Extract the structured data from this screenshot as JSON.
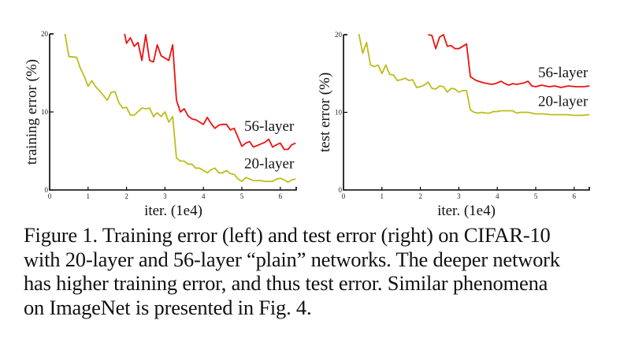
{
  "chart_data": [
    {
      "type": "line",
      "title": "",
      "xlabel": "iter. (1e4)",
      "ylabel": "training error (%)",
      "xlim": [
        0,
        6.4
      ],
      "ylim": [
        0,
        20
      ],
      "x_ticks": [
        "0",
        "1",
        "2",
        "3",
        "4",
        "5",
        "6"
      ],
      "y_ticks": [
        "0",
        "10",
        "20"
      ],
      "grid": false,
      "legend_position": "inline-right",
      "series": [
        {
          "name": "56-layer",
          "color": "#ee1111",
          "x": [
            1.95,
            2.0,
            2.1,
            2.2,
            2.3,
            2.4,
            2.5,
            2.6,
            2.7,
            2.8,
            2.9,
            3.1,
            3.2,
            3.3,
            3.4,
            3.5,
            3.6,
            3.7,
            3.8,
            4.0,
            4.1,
            4.2,
            4.3,
            4.4,
            4.5,
            4.6,
            4.7,
            4.8,
            5.0,
            5.1,
            5.2,
            5.3,
            5.4,
            5.5,
            5.6,
            5.7,
            5.8,
            5.9,
            6.0,
            6.1,
            6.2,
            6.3,
            6.4
          ],
          "values": [
            20.0,
            18.8,
            19.5,
            18.4,
            18.9,
            16.6,
            19.9,
            16.6,
            16.4,
            18.6,
            17.2,
            16.6,
            18.6,
            11.5,
            10.0,
            10.4,
            9.5,
            9.1,
            9.0,
            8.4,
            9.3,
            8.5,
            7.9,
            8.3,
            8.4,
            8.4,
            7.7,
            7.9,
            5.6,
            6.0,
            6.2,
            5.5,
            5.7,
            5.9,
            6.1,
            6.5,
            5.5,
            5.8,
            6.0,
            5.2,
            5.2,
            5.8,
            6.0
          ]
        },
        {
          "name": "20-layer",
          "color": "#bdbd1c",
          "x": [
            0.4,
            0.5,
            0.7,
            0.8,
            0.9,
            1.0,
            1.1,
            1.2,
            1.3,
            1.4,
            1.5,
            1.6,
            1.7,
            1.8,
            1.9,
            2.0,
            2.1,
            2.2,
            2.4,
            2.5,
            2.6,
            2.7,
            2.8,
            2.9,
            3.0,
            3.1,
            3.2,
            3.3,
            3.4,
            3.5,
            3.6,
            3.7,
            3.8,
            3.9,
            4.0,
            4.1,
            4.2,
            4.3,
            4.4,
            4.5,
            4.6,
            4.7,
            4.8,
            4.9,
            5.0,
            5.1,
            5.2,
            5.3,
            5.5,
            5.6,
            5.8,
            5.9,
            6.0,
            6.1,
            6.2,
            6.3,
            6.4
          ],
          "values": [
            20.0,
            17.1,
            17.0,
            15.6,
            14.6,
            13.3,
            14.0,
            13.2,
            12.7,
            12.1,
            11.5,
            12.5,
            12.6,
            11.2,
            10.5,
            10.6,
            9.6,
            9.6,
            10.5,
            10.4,
            10.5,
            9.4,
            9.9,
            9.4,
            10.0,
            8.7,
            9.4,
            4.1,
            3.7,
            3.7,
            3.3,
            3.3,
            2.8,
            2.8,
            2.5,
            2.2,
            2.6,
            2.8,
            2.2,
            2.2,
            2.5,
            2.1,
            2.0,
            1.4,
            1.1,
            1.6,
            1.4,
            1.2,
            1.2,
            1.1,
            1.1,
            1.4,
            1.5,
            1.3,
            1.0,
            1.3,
            1.4
          ]
        }
      ],
      "annotations": [
        {
          "text": "56-layer",
          "x": 5.7,
          "y": 7.6
        },
        {
          "text": "20-layer",
          "x": 5.7,
          "y": 2.8
        }
      ]
    },
    {
      "type": "line",
      "title": "",
      "xlabel": "iter. (1e4)",
      "ylabel": "test error (%)",
      "xlim": [
        0,
        6.4
      ],
      "ylim": [
        0,
        20
      ],
      "x_ticks": [
        "0",
        "1",
        "2",
        "3",
        "4",
        "5",
        "6"
      ],
      "y_ticks": [
        "0",
        "10",
        "20"
      ],
      "grid": false,
      "legend_position": "inline-right",
      "series": [
        {
          "name": "56-layer",
          "color": "#ee1111",
          "x": [
            2.2,
            2.3,
            2.4,
            2.5,
            2.6,
            2.7,
            2.8,
            2.9,
            3.0,
            3.1,
            3.2,
            3.3,
            3.45,
            3.65,
            3.85,
            3.95,
            4.1,
            4.2,
            4.3,
            4.4,
            4.5,
            4.6,
            4.7,
            4.8,
            4.9,
            5.0,
            5.15,
            5.35,
            5.5,
            5.65,
            5.85,
            6.05,
            6.25,
            6.4
          ],
          "values": [
            20.0,
            19.9,
            18.2,
            19.7,
            20.0,
            18.5,
            18.6,
            18.2,
            18.2,
            18.5,
            18.8,
            14.6,
            14.1,
            13.8,
            13.6,
            13.7,
            14.0,
            13.7,
            13.5,
            13.7,
            13.6,
            13.7,
            13.8,
            14.0,
            13.4,
            13.3,
            13.5,
            13.3,
            13.4,
            13.2,
            13.4,
            13.3,
            13.3,
            13.4
          ]
        },
        {
          "name": "20-layer",
          "color": "#bdbd1c",
          "x": [
            0.4,
            0.5,
            0.6,
            0.7,
            0.8,
            0.9,
            1.0,
            1.1,
            1.2,
            1.3,
            1.4,
            1.5,
            1.6,
            1.7,
            1.8,
            1.9,
            2.0,
            2.1,
            2.2,
            2.3,
            2.4,
            2.5,
            2.6,
            2.7,
            2.8,
            2.9,
            3.0,
            3.1,
            3.2,
            3.3,
            3.4,
            3.5,
            3.6,
            3.7,
            3.8,
            3.9,
            4.0,
            4.1,
            4.2,
            4.3,
            4.4,
            4.5,
            4.6,
            4.8,
            5.0,
            5.2,
            5.4,
            5.6,
            5.8,
            6.0,
            6.2,
            6.4
          ],
          "values": [
            20.1,
            17.6,
            19.0,
            16.1,
            15.9,
            16.1,
            15.0,
            16.1,
            14.9,
            14.8,
            14.1,
            14.2,
            14.4,
            14.1,
            14.2,
            13.2,
            13.3,
            13.5,
            13.9,
            13.1,
            13.0,
            13.4,
            13.3,
            12.6,
            13.1,
            13.0,
            12.6,
            12.8,
            12.8,
            10.3,
            10.0,
            9.9,
            10.0,
            9.9,
            9.9,
            10.1,
            10.1,
            10.2,
            10.2,
            10.2,
            10.2,
            9.9,
            10.0,
            10.0,
            9.8,
            9.8,
            9.7,
            9.7,
            9.7,
            9.6,
            9.6,
            9.7
          ]
        }
      ],
      "annotations": [
        {
          "text": "56-layer",
          "x": 5.7,
          "y": 14.5
        },
        {
          "text": "20-layer",
          "x": 5.7,
          "y": 10.8
        }
      ]
    }
  ],
  "caption": {
    "lines": [
      "Figure 1. Training error (left) and test error (right) on CIFAR-10",
      "with 20-layer and 56-layer “plain” networks. The deeper network",
      "has higher training error, and thus test error.  Similar phenomena",
      "on ImageNet is presented in Fig. 4."
    ]
  }
}
